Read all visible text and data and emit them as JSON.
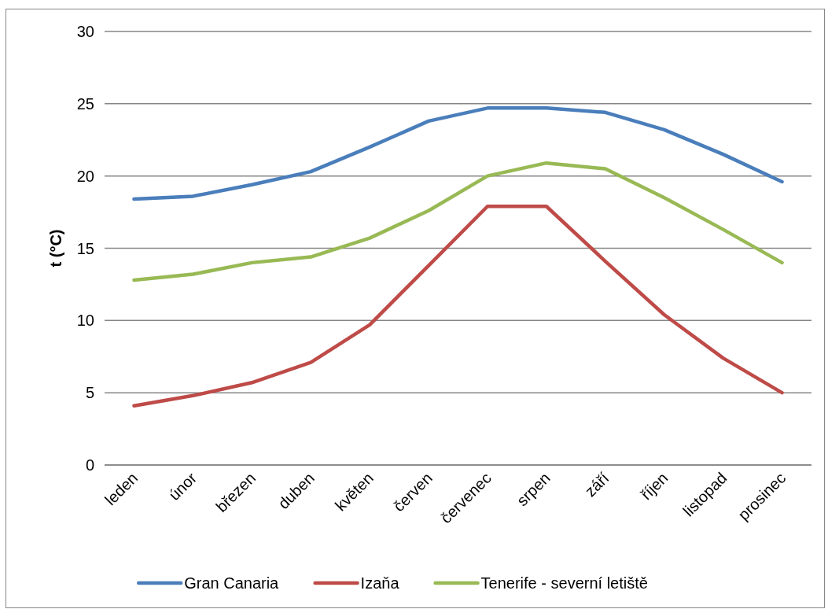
{
  "chart_data": {
    "type": "line",
    "ylabel": "t (°C)",
    "categories": [
      "leden",
      "únor",
      "březen",
      "duben",
      "květen",
      "červen",
      "červenec",
      "srpen",
      "září",
      "říjen",
      "listopad",
      "prosinec"
    ],
    "series": [
      {
        "name": "Gran Canaria",
        "color": "#4a7ebb",
        "values": [
          18.4,
          18.6,
          19.4,
          20.3,
          22.0,
          23.8,
          24.7,
          24.7,
          24.4,
          23.2,
          21.5,
          19.6
        ]
      },
      {
        "name": "Izaňa",
        "color": "#be4b48",
        "values": [
          4.1,
          4.8,
          5.7,
          7.1,
          9.7,
          13.8,
          17.9,
          17.9,
          14.1,
          10.4,
          7.4,
          5.0
        ]
      },
      {
        "name": "Tenerife - severní letiště",
        "color": "#98b954",
        "values": [
          12.8,
          13.2,
          14.0,
          14.4,
          15.7,
          17.6,
          20.0,
          20.9,
          20.5,
          18.5,
          16.3,
          14.0
        ]
      }
    ],
    "ylim": [
      0,
      30
    ],
    "yticks": [
      0,
      5,
      10,
      15,
      20,
      25,
      30
    ],
    "grid": "y",
    "legend": "bottom"
  }
}
